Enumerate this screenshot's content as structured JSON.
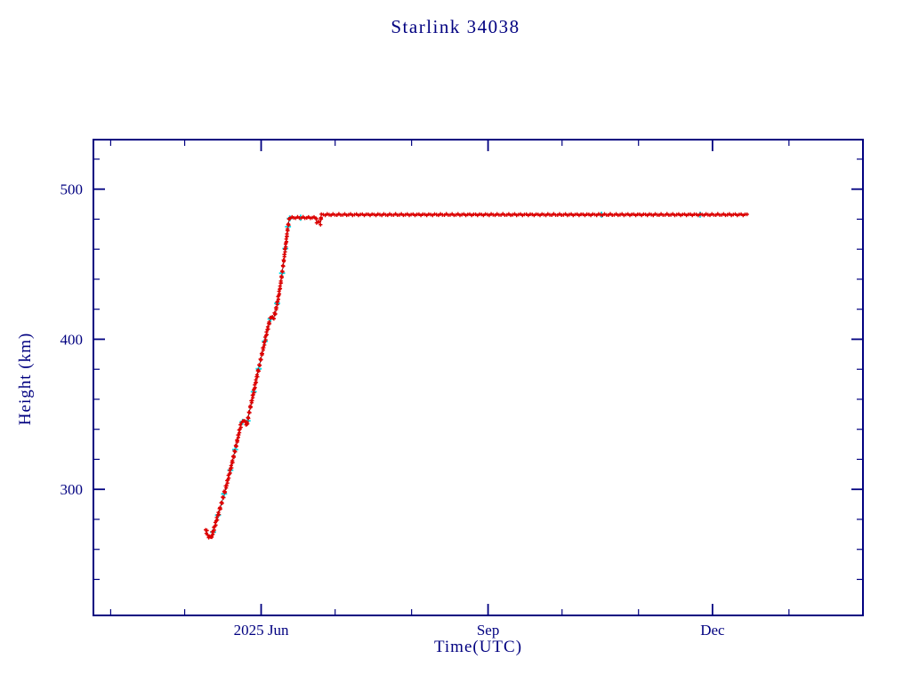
{
  "title": "Starlink 34038",
  "axes": {
    "x_label": "Time(UTC)",
    "y_label": "Height (km)"
  },
  "colors": {
    "axis_and_text": "#000080",
    "marker_primary": "#dc0000",
    "marker_secondary": "#00dce8",
    "line": "#000000",
    "background": "#ffffff"
  },
  "chart_data": {
    "type": "scatter",
    "title": "Starlink 34038",
    "xlabel": "Time(UTC)",
    "ylabel": "Height (km)",
    "x_unit": "day_of_year_2025",
    "xlim": [
      84,
      396
    ],
    "ylim": [
      216,
      533
    ],
    "grid": false,
    "legend": "none",
    "x_major_ticks": [
      {
        "day": 152,
        "label": "2025 Jun"
      },
      {
        "day": 244,
        "label": "Sep"
      },
      {
        "day": 335,
        "label": "Dec"
      }
    ],
    "x_minor_ticks": [
      91,
      121,
      182,
      213,
      274,
      305,
      366
    ],
    "y_major_ticks": [
      {
        "value": 300,
        "label": "300"
      },
      {
        "value": 400,
        "label": "400"
      },
      {
        "value": 500,
        "label": "500"
      }
    ],
    "y_minor_ticks": [
      240,
      260,
      280,
      320,
      340,
      360,
      380,
      420,
      440,
      460,
      480,
      520
    ],
    "series": [
      {
        "name": "height-profile-primary",
        "marker": "plus",
        "color": "#dc0000",
        "anchors": [
          [
            129.5,
            273
          ],
          [
            130.3,
            270
          ],
          [
            131.2,
            268
          ],
          [
            132.0,
            269
          ],
          [
            132.8,
            273
          ],
          [
            134.0,
            280
          ],
          [
            136.0,
            291
          ],
          [
            138.0,
            303
          ],
          [
            140.0,
            316
          ],
          [
            142.0,
            330
          ],
          [
            143.2,
            339
          ],
          [
            144.0,
            344
          ],
          [
            145.0,
            346
          ],
          [
            145.6,
            344
          ],
          [
            146.2,
            343
          ],
          [
            147.0,
            350
          ],
          [
            148.5,
            361
          ],
          [
            150.0,
            373
          ],
          [
            151.5,
            384
          ],
          [
            153.0,
            395
          ],
          [
            154.5,
            406
          ],
          [
            155.4,
            412
          ],
          [
            156.2,
            415
          ],
          [
            157.0,
            414
          ],
          [
            157.8,
            418
          ],
          [
            159.0,
            428
          ],
          [
            160.0,
            438
          ],
          [
            161.0,
            450
          ],
          [
            162.0,
            463
          ],
          [
            162.8,
            474
          ],
          [
            163.4,
            480
          ],
          [
            163.8,
            481
          ],
          [
            174.2,
            481
          ],
          [
            174.5,
            478
          ],
          [
            176.1,
            478
          ],
          [
            176.4,
            483
          ],
          [
            349.0,
            483
          ]
        ]
      },
      {
        "name": "height-profile-secondary",
        "marker": "plus",
        "color": "#00dce8",
        "sample_days": [
          132.5,
          134.5,
          137.0,
          139.5,
          141.5,
          144.5,
          146.5,
          149.0,
          151.0,
          153.5,
          155.8,
          158.5,
          160.5,
          161.8,
          162.9,
          163.6,
          168.0,
          290.0,
          330.0
        ]
      }
    ]
  }
}
